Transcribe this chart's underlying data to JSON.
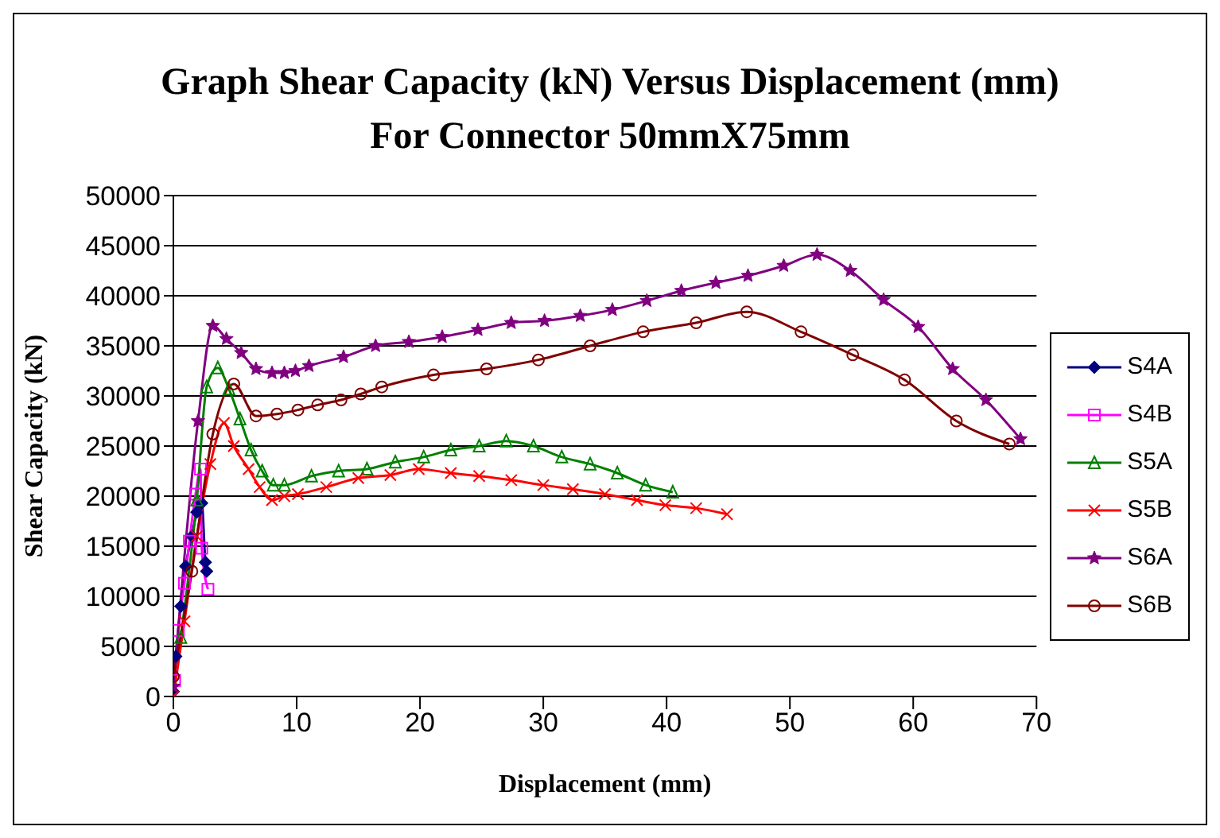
{
  "chart_data": {
    "type": "line",
    "title": "Graph Shear Capacity (kN) Versus Displacement (mm)\nFor Connector 50mmX75mm",
    "xlabel": "Displacement (mm)",
    "ylabel": "Shear Capacity (kN)",
    "xlim": [
      0,
      70
    ],
    "xticks": [
      0,
      10,
      20,
      30,
      40,
      50,
      60,
      70
    ],
    "ylim": [
      0,
      50000
    ],
    "yticks": [
      0,
      5000,
      10000,
      15000,
      20000,
      25000,
      30000,
      35000,
      40000,
      45000,
      50000
    ],
    "grid": "y",
    "legend": "right",
    "series": [
      {
        "name": "S4A",
        "color": "#000080",
        "marker": "diamond",
        "x": [
          0,
          0.2,
          0.6,
          1,
          1.5,
          1.9,
          2.3,
          2.6,
          2.7
        ],
        "values": [
          500,
          4000,
          9000,
          13000,
          16000,
          18400,
          19300,
          13400,
          12500
        ]
      },
      {
        "name": "S4B",
        "color": "#ff00ff",
        "marker": "square",
        "x": [
          0.1,
          0.4,
          0.9,
          1.3,
          1.8,
          2.2,
          2.3,
          2.8
        ],
        "values": [
          1600,
          6600,
          11300,
          15500,
          20200,
          22700,
          14800,
          10700
        ]
      },
      {
        "name": "S5A",
        "color": "#008000",
        "marker": "triangle",
        "x": [
          0.6,
          1.9,
          2.7,
          3.6,
          4.5,
          5.4,
          6.3,
          7.2,
          8.1,
          9,
          11.2,
          13.4,
          15.7,
          18,
          20.3,
          22.5,
          24.8,
          27,
          29.2,
          31.5,
          33.8,
          36,
          38.3,
          40.5
        ],
        "values": [
          5900,
          19600,
          30900,
          32800,
          30700,
          27700,
          24600,
          22500,
          21100,
          21100,
          22000,
          22500,
          22700,
          23400,
          23900,
          24600,
          25000,
          25500,
          25000,
          23900,
          23200,
          22300,
          21100,
          20400
        ]
      },
      {
        "name": "S5B",
        "color": "#ff0000",
        "marker": "cross",
        "x": [
          0,
          0.9,
          1.9,
          3,
          4.1,
          4.9,
          6.1,
          7,
          8,
          9,
          10.1,
          12.4,
          15,
          17.6,
          19.9,
          22.5,
          24.8,
          27.4,
          30,
          32.4,
          35,
          37.6,
          39.9,
          42.4,
          44.9
        ],
        "values": [
          0,
          7500,
          16000,
          23200,
          27300,
          25000,
          22700,
          20900,
          19600,
          20000,
          20200,
          20900,
          21800,
          22100,
          22700,
          22300,
          22000,
          21600,
          21100,
          20700,
          20200,
          19600,
          19100,
          18800,
          18200
        ]
      },
      {
        "name": "S6A",
        "color": "#800080",
        "marker": "star",
        "x": [
          0,
          2,
          3.2,
          4.3,
          5.5,
          6.7,
          8,
          9,
          9.9,
          11,
          13.8,
          16.4,
          19.1,
          21.8,
          24.7,
          27.4,
          30.1,
          33,
          35.6,
          38.4,
          41.2,
          44,
          46.6,
          49.5,
          52.2,
          54.9,
          57.6,
          60.4,
          63.2,
          65.9,
          68.7
        ],
        "values": [
          1000,
          27500,
          37000,
          35700,
          34300,
          32700,
          32300,
          32300,
          32500,
          33000,
          33900,
          35000,
          35400,
          35900,
          36600,
          37300,
          37500,
          38000,
          38600,
          39500,
          40500,
          41300,
          42000,
          43000,
          44100,
          42500,
          39600,
          36900,
          32700,
          29600,
          25700
        ]
      },
      {
        "name": "S6B",
        "color": "#800000",
        "marker": "circle",
        "x": [
          0,
          1.5,
          3.2,
          4.9,
          6.7,
          8.4,
          10.1,
          11.7,
          13.6,
          15.2,
          16.9,
          21.1,
          25.4,
          29.6,
          33.8,
          38.1,
          42.4,
          46.5,
          50.9,
          55.1,
          59.3,
          63.5,
          67.8
        ],
        "values": [
          2000,
          12500,
          26200,
          31200,
          28000,
          28200,
          28600,
          29100,
          29600,
          30200,
          30900,
          32100,
          32700,
          33600,
          35000,
          36400,
          37300,
          38400,
          36400,
          34100,
          31600,
          27500,
          25200
        ]
      }
    ]
  }
}
